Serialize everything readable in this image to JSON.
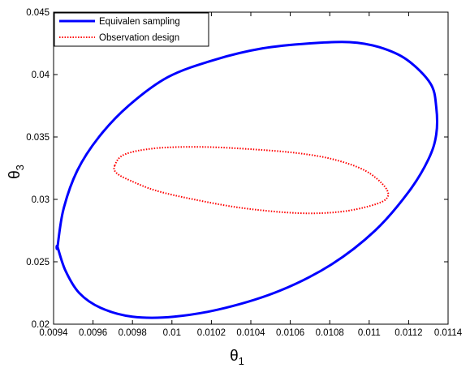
{
  "chart_data": {
    "type": "line",
    "xlabel": "θ",
    "xlabel_sub": "1",
    "ylabel": "θ",
    "ylabel_sub": "3",
    "xlim": [
      0.0094,
      0.0114
    ],
    "ylim": [
      0.02,
      0.045
    ],
    "xticks": [
      "0.0094",
      "0.0096",
      "0.0098",
      "0.01",
      "0.0102",
      "0.0104",
      "0.0106",
      "0.0108",
      "0.011",
      "0.0112",
      "0.0114"
    ],
    "yticks": [
      "0.02",
      "0.025",
      "0.03",
      "0.035",
      "0.04",
      "0.045"
    ],
    "grid": false,
    "legend_position": "top-left",
    "series": [
      {
        "name": "Equivalen sampling",
        "color": "#0000ff",
        "style": "solid",
        "x": [
          0.00942,
          0.00945,
          0.00952,
          0.00963,
          0.00978,
          0.00998,
          0.01022,
          0.01046,
          0.0107,
          0.0109,
          0.01105,
          0.01119,
          0.01131,
          0.01134,
          0.01134,
          0.0113,
          0.0112,
          0.01103,
          0.01081,
          0.01055,
          0.01027,
          0.01001,
          0.0098,
          0.00964,
          0.00953,
          0.00946,
          0.00942,
          0.00942
        ],
        "y": [
          0.0262,
          0.0292,
          0.0323,
          0.035,
          0.0375,
          0.0398,
          0.0412,
          0.0421,
          0.0425,
          0.0426,
          0.0422,
          0.0412,
          0.0393,
          0.0374,
          0.0352,
          0.0332,
          0.0306,
          0.0275,
          0.0248,
          0.0227,
          0.0213,
          0.0206,
          0.0206,
          0.0213,
          0.0225,
          0.0243,
          0.0262,
          0.0262
        ]
      },
      {
        "name": "Observation design",
        "color": "#ff0000",
        "style": "dotted",
        "x": [
          0.00971,
          0.00976,
          0.00992,
          0.01016,
          0.01042,
          0.01064,
          0.01082,
          0.01098,
          0.01108,
          0.01109,
          0.01101,
          0.01085,
          0.01064,
          0.01036,
          0.01011,
          0.00992,
          0.00979,
          0.00972,
          0.00971
        ],
        "y": [
          0.0327,
          0.0336,
          0.0341,
          0.0342,
          0.034,
          0.0337,
          0.0332,
          0.0323,
          0.031,
          0.0301,
          0.0295,
          0.029,
          0.0289,
          0.0293,
          0.03,
          0.0307,
          0.0315,
          0.0321,
          0.0327
        ]
      }
    ]
  }
}
